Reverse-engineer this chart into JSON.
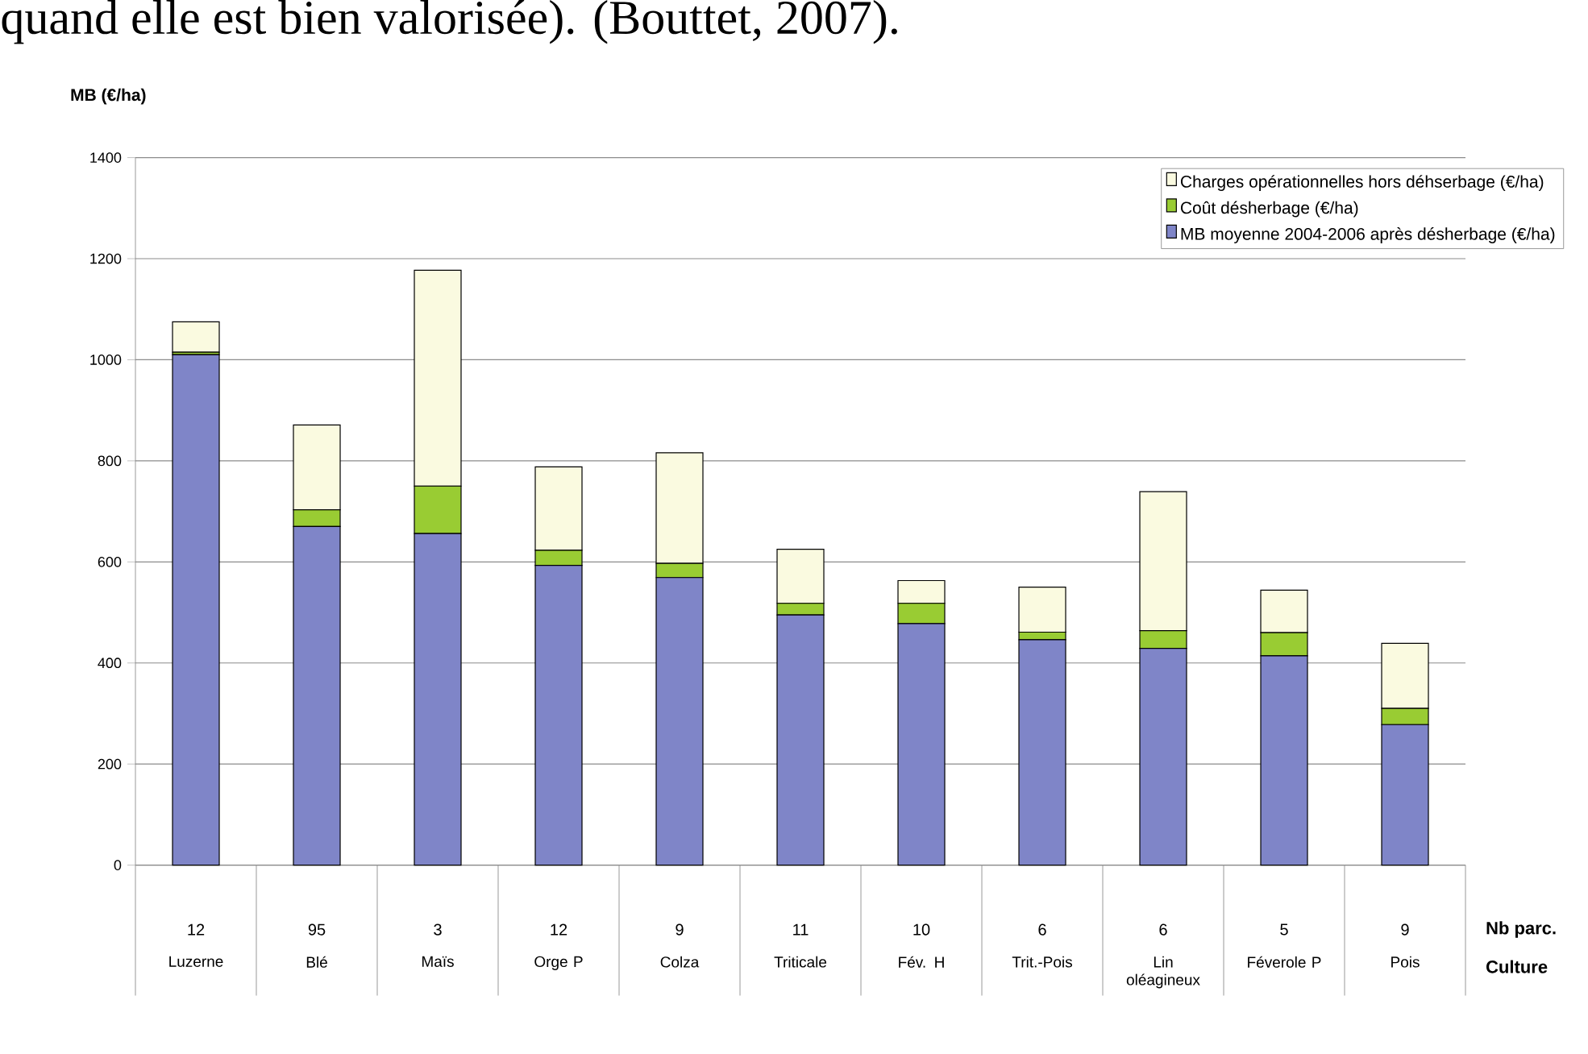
{
  "chart_data": {
    "type": "bar",
    "stacked": true,
    "ylabel": "MB (€/ha)",
    "xlabel": "Culture",
    "annotations": [
      "quand elle est bien valorisée). (Bouttet, 2007).",
      "Nb parc.",
      "12",
      "95",
      "3",
      "12",
      "9",
      "11",
      "10",
      "6",
      "6",
      "5",
      "9"
    ],
    "categories": [
      "Luzerne",
      "Blé",
      "Maïs",
      "Orge P",
      "Colza",
      "Triticale",
      "Fév. H",
      "Trit.-Pois",
      "Lin oléagineux",
      "Féverole P",
      "Pois"
    ],
    "series": [
      {
        "name": "MB moyenne 2004-2006 après désherbage (€/ha)",
        "color": "#7f85c8",
        "values": [
          1010,
          670,
          656,
          593,
          569,
          495,
          478,
          446,
          429,
          414,
          278
        ]
      },
      {
        "name": "Coût désherbage (€/ha)",
        "color": "#99cc33",
        "values": [
          5,
          33,
          94,
          30,
          28,
          23,
          40,
          15,
          35,
          46,
          32
        ]
      },
      {
        "name": "Charges opérationnelles hors déhserbage (€/ha)",
        "color": "#fafae0",
        "values": [
          60,
          168,
          427,
          165,
          219,
          107,
          45,
          89,
          275,
          84,
          129
        ]
      }
    ],
    "ylim": [
      0,
      1400
    ],
    "yticks": [
      0,
      200,
      400,
      600,
      800,
      1000,
      1200,
      1400
    ],
    "grid": "y",
    "legend": "top right"
  }
}
